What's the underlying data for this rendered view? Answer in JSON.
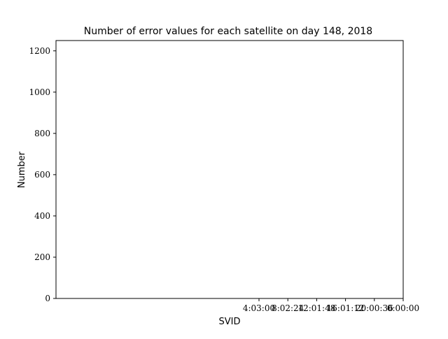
{
  "chart_data": {
    "type": "bar",
    "title": "Number of error values for each satellite on day 148, 2018",
    "xlabel": "SVID",
    "ylabel": "Number",
    "ylim": [
      0,
      1250
    ],
    "yticks": [
      0,
      200,
      400,
      600,
      800,
      1000,
      1200
    ],
    "xtick_labels": [
      "4:03:00",
      "8:02:24",
      "12:01:48",
      "16:01:12",
      "20:00:36",
      "0:00:00"
    ],
    "series": [],
    "grid": false,
    "legend": "none"
  }
}
